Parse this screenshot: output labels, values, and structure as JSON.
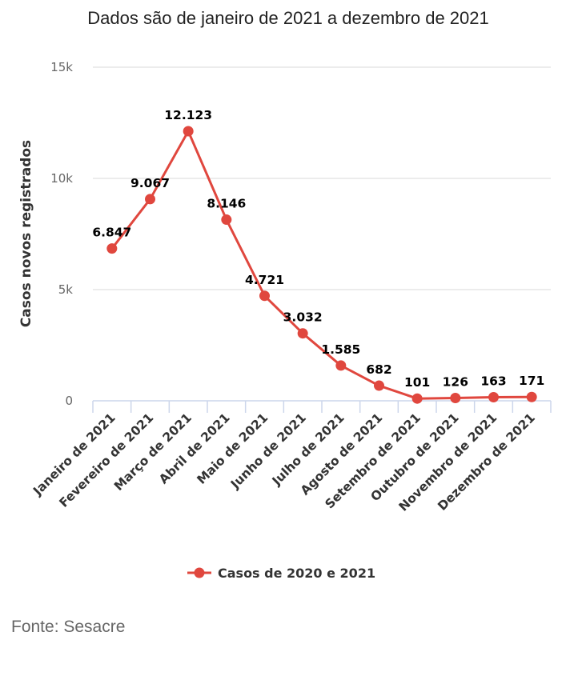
{
  "chart_data": {
    "type": "line",
    "title": "Dados são de janeiro de 2021 a dezembro de 2021",
    "xlabel": "",
    "ylabel": "Casos novos registrados",
    "ylim": [
      0,
      15000
    ],
    "yticks": [
      0,
      5000,
      10000,
      15000
    ],
    "ytick_labels": [
      "0",
      "5k",
      "10k",
      "15k"
    ],
    "grid": true,
    "categories": [
      "Janeiro de 2021",
      "Fevereiro de 2021",
      "Março de 2021",
      "Abril de 2021",
      "Maio de 2021",
      "Junho de 2021",
      "Julho de 2021",
      "Agosto de 2021",
      "Setembro de 2021",
      "Outubro de 2021",
      "Novembro de 2021",
      "Dezembro de 2021"
    ],
    "series": [
      {
        "name": "Casos de 2020 e 2021",
        "color": "#e0473e",
        "values": [
          6847,
          9067,
          12123,
          8146,
          4721,
          3032,
          1585,
          682,
          101,
          126,
          163,
          171
        ],
        "data_labels": [
          "6.847",
          "9.067",
          "12.123",
          "8.146",
          "4.721",
          "3.032",
          "1.585",
          "682",
          "101",
          "126",
          "163",
          "171"
        ]
      }
    ],
    "legend": {
      "position": "bottom-center",
      "label": "Casos de 2020 e 2021"
    },
    "source": "Fonte: Sesacre"
  }
}
